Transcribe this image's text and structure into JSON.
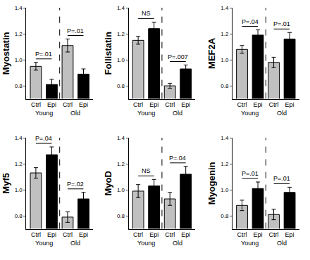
{
  "chart_data": [
    {
      "type": "bar",
      "ylabel": "Myostatin",
      "categories": [
        "Ctrl",
        "Epi",
        "Ctrl",
        "Epi"
      ],
      "groups": [
        "Young",
        "Old"
      ],
      "values": [
        0.95,
        0.81,
        1.11,
        0.89
      ],
      "errors": [
        0.03,
        0.04,
        0.05,
        0.04
      ],
      "annotations": [
        "P=.01",
        "P=.01"
      ],
      "colors": [
        "#c0c0c0",
        "#000000",
        "#c0c0c0",
        "#000000"
      ],
      "ylim": [
        0.7,
        1.4
      ],
      "yticks": [
        0.8,
        {
          "value": 1,
          "label": "1.0"
        },
        1.2,
        1.4
      ]
    },
    {
      "type": "bar",
      "ylabel": "Follistatin",
      "categories": [
        "Ctrl",
        "Epi",
        "Ctrl",
        "Epi"
      ],
      "groups": [
        "Young",
        "Old"
      ],
      "values": [
        1.15,
        1.24,
        0.8,
        0.93
      ],
      "errors": [
        0.03,
        0.05,
        0.02,
        0.03
      ],
      "annotations": [
        "NS",
        "P=.007"
      ],
      "colors": [
        "#c0c0c0",
        "#000000",
        "#c0c0c0",
        "#000000"
      ],
      "ylim": [
        0.7,
        1.4
      ],
      "yticks": [
        0.8,
        {
          "value": 1,
          "label": "1.0"
        },
        1.2,
        1.4
      ]
    },
    {
      "type": "bar",
      "ylabel": "MEF2A",
      "categories": [
        "Ctrl",
        "Epi",
        "Ctrl",
        "Epi"
      ],
      "groups": [
        "Young",
        "Old"
      ],
      "values": [
        1.08,
        1.19,
        0.98,
        1.16
      ],
      "errors": [
        0.03,
        0.04,
        0.04,
        0.05
      ],
      "annotations": [
        "P=.04",
        "P=.01"
      ],
      "colors": [
        "#c0c0c0",
        "#000000",
        "#c0c0c0",
        "#000000"
      ],
      "ylim": [
        0.7,
        1.4
      ],
      "yticks": [
        0.8,
        {
          "value": 1,
          "label": "1.0"
        },
        1.2,
        1.4
      ]
    },
    {
      "type": "bar",
      "ylabel": "Myf5",
      "categories": [
        "Ctrl",
        "Epi",
        "Ctrl",
        "Epi"
      ],
      "groups": [
        "Young",
        "Old"
      ],
      "values": [
        1.13,
        1.27,
        0.79,
        0.93
      ],
      "errors": [
        0.04,
        0.06,
        0.04,
        0.05
      ],
      "annotations": [
        "P=.04",
        "P=.02"
      ],
      "colors": [
        "#c0c0c0",
        "#000000",
        "#c0c0c0",
        "#000000"
      ],
      "ylim": [
        0.7,
        1.4
      ],
      "yticks": [
        0.8,
        {
          "value": 1,
          "label": "1.0"
        },
        1.2,
        1.4
      ]
    },
    {
      "type": "bar",
      "ylabel": "MyoD",
      "categories": [
        "Ctrl",
        "Epi",
        "Ctrl",
        "Epi"
      ],
      "groups": [
        "Young",
        "Old"
      ],
      "values": [
        0.99,
        1.03,
        0.93,
        1.12
      ],
      "errors": [
        0.05,
        0.05,
        0.05,
        0.06
      ],
      "annotations": [
        "NS",
        "P=.04"
      ],
      "colors": [
        "#c0c0c0",
        "#000000",
        "#c0c0c0",
        "#000000"
      ],
      "ylim": [
        0.7,
        1.4
      ],
      "yticks": [
        0.8,
        {
          "value": 1,
          "label": "1.0"
        },
        1.2,
        1.4
      ]
    },
    {
      "type": "bar",
      "ylabel": "Myogenin",
      "categories": [
        "Ctrl",
        "Epi",
        "Ctrl",
        "Epi"
      ],
      "groups": [
        "Young",
        "Old"
      ],
      "values": [
        0.88,
        1.01,
        0.81,
        0.98
      ],
      "errors": [
        0.04,
        0.05,
        0.04,
        0.04
      ],
      "annotations": [
        "P=.01",
        "P=.01"
      ],
      "colors": [
        "#c0c0c0",
        "#000000",
        "#c0c0c0",
        "#000000"
      ],
      "ylim": [
        0.7,
        1.4
      ],
      "yticks": [
        0.8,
        {
          "value": 1,
          "label": "1.0"
        },
        1.2,
        1.4
      ]
    }
  ]
}
